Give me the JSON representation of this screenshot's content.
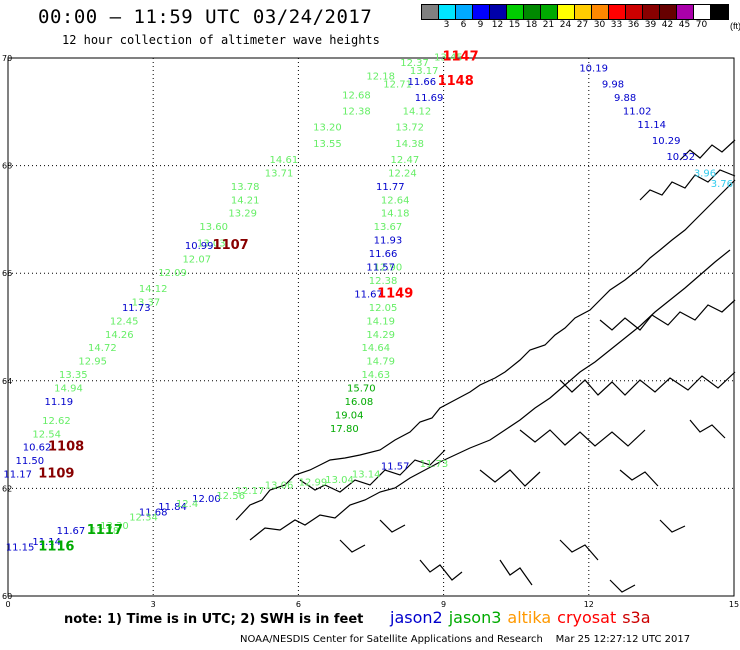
{
  "title": "00:00 – 11:59 UTC 03/24/2017",
  "subtitle": "12 hour collection of altimeter wave heights",
  "legend": {
    "colors": [
      "#808080",
      "#00e5ff",
      "#00aaff",
      "#0000ff",
      "#0000aa",
      "#00cc00",
      "#008800",
      "#00aa00",
      "#ffff00",
      "#ffcc00",
      "#ff8800",
      "#ff0000",
      "#cc0000",
      "#880000",
      "#660000",
      "#aa00aa",
      "#ffffff",
      "#000000"
    ],
    "labels": [
      "3",
      "6",
      "9",
      "12",
      "15",
      "18",
      "21",
      "24",
      "27",
      "30",
      "33",
      "36",
      "39",
      "42",
      "45",
      "70"
    ],
    "unit": "(ft)"
  },
  "axes": {
    "x_ticks": [
      "0",
      "3",
      "6",
      "9",
      "12",
      "15"
    ],
    "y_ticks": [
      "70",
      "68",
      "66",
      "64",
      "62",
      "60"
    ]
  },
  "colors": {
    "jason2": "#0000cc",
    "jason3": "#00aa00",
    "altika": "#ff9900",
    "cryosat": "#ff0000",
    "s3a": "#cc0000",
    "light_green": "#66ee66",
    "cyan": "#33ccee",
    "dark_red": "#880000"
  },
  "passes": [
    {
      "color": "light_green",
      "points": [
        [
          9.1,
          69.95,
          "13.45"
        ],
        [
          8.4,
          69.85,
          "12.37"
        ],
        [
          8.6,
          69.7,
          "13.17"
        ],
        [
          7.7,
          69.6,
          "12.18"
        ],
        [
          8.05,
          69.45,
          "12.71"
        ],
        [
          7.2,
          69.25,
          "12.68"
        ],
        [
          7.2,
          68.95,
          "12.38"
        ],
        [
          6.6,
          68.65,
          "13.20"
        ],
        [
          6.6,
          68.35,
          "13.55"
        ],
        [
          5.7,
          68.05,
          "14.61"
        ],
        [
          5.6,
          67.8,
          "13.71"
        ],
        [
          4.9,
          67.55,
          "13.78"
        ],
        [
          4.9,
          67.3,
          "14.21"
        ],
        [
          4.85,
          67.05,
          "13.29"
        ],
        [
          4.25,
          66.8,
          "13.60"
        ],
        [
          4.2,
          66.5,
          "13.03"
        ],
        [
          3.9,
          66.2,
          "12.07"
        ],
        [
          3.4,
          65.95,
          "12.09"
        ],
        [
          3.0,
          65.65,
          "14.12"
        ],
        [
          2.85,
          65.4,
          "13.37"
        ]
      ]
    },
    {
      "color": "jason2",
      "points": [
        [
          8.55,
          69.5,
          "11.66"
        ],
        [
          8.7,
          69.2,
          "11.69"
        ],
        [
          3.95,
          66.45,
          "10.99"
        ],
        [
          2.65,
          65.3,
          "11.73"
        ]
      ]
    },
    {
      "color": "light_green",
      "points": [
        [
          8.45,
          68.95,
          "14.12"
        ],
        [
          8.3,
          68.65,
          "13.72"
        ],
        [
          8.3,
          68.35,
          "14.38"
        ],
        [
          8.2,
          68.05,
          "12.47"
        ],
        [
          8.15,
          67.8,
          "12.24"
        ],
        [
          8.0,
          67.3,
          "12.64"
        ],
        [
          8.0,
          67.05,
          "14.18"
        ],
        [
          7.85,
          66.8,
          "13.67"
        ],
        [
          7.85,
          66.05,
          "12.90"
        ],
        [
          7.75,
          65.8,
          "12.38"
        ],
        [
          7.75,
          65.3,
          "12.05"
        ],
        [
          7.7,
          65.05,
          "14.19"
        ],
        [
          7.7,
          64.8,
          "14.29"
        ],
        [
          7.6,
          64.55,
          "14.64"
        ],
        [
          7.7,
          64.3,
          "14.79"
        ],
        [
          7.6,
          64.05,
          "14.63"
        ]
      ]
    },
    {
      "color": "jason2",
      "points": [
        [
          7.9,
          67.55,
          "11.77"
        ],
        [
          7.85,
          66.55,
          "11.93"
        ],
        [
          7.75,
          66.3,
          "11.66"
        ],
        [
          7.7,
          66.05,
          "11.57"
        ],
        [
          7.45,
          65.55,
          "11.67"
        ]
      ]
    },
    {
      "color": "jason3",
      "points": [
        [
          7.3,
          63.8,
          "15.70"
        ],
        [
          7.25,
          63.55,
          "16.08"
        ],
        [
          7.05,
          63.3,
          "19.04"
        ],
        [
          6.95,
          63.05,
          "17.80"
        ]
      ]
    },
    {
      "color": "light_green",
      "points": [
        [
          2.4,
          65.05,
          "12.45"
        ],
        [
          2.3,
          64.8,
          "14.26"
        ],
        [
          1.95,
          64.55,
          "14.72"
        ],
        [
          1.75,
          64.3,
          "12.95"
        ],
        [
          1.35,
          64.05,
          "13.35"
        ],
        [
          1.25,
          63.8,
          "14.94"
        ],
        [
          1.0,
          63.2,
          "12.62"
        ],
        [
          0.8,
          62.95,
          "12.54"
        ]
      ]
    },
    {
      "color": "jason2",
      "points": [
        [
          1.05,
          63.55,
          "11.19"
        ],
        [
          0.6,
          62.7,
          "10.62"
        ],
        [
          0.45,
          62.45,
          "11.50"
        ],
        [
          0.2,
          62.2,
          "11.17"
        ]
      ]
    },
    {
      "color": "jason2",
      "points": [
        [
          12.1,
          69.75,
          "10.19"
        ],
        [
          12.5,
          69.45,
          "9.98"
        ],
        [
          12.75,
          69.2,
          "9.88"
        ],
        [
          13.0,
          68.95,
          "11.02"
        ],
        [
          13.3,
          68.7,
          "11.14"
        ],
        [
          13.6,
          68.4,
          "10.29"
        ],
        [
          13.9,
          68.1,
          "10.52"
        ]
      ]
    },
    {
      "color": "cyan",
      "points": [
        [
          14.4,
          67.8,
          "3.96"
        ],
        [
          14.75,
          67.6,
          "3.76"
        ]
      ]
    },
    {
      "color": "jason2",
      "points": [
        [
          4.1,
          61.75,
          "12.00"
        ],
        [
          3.0,
          61.5,
          "11.68"
        ],
        [
          3.4,
          61.6,
          "11.84"
        ],
        [
          1.3,
          61.15,
          "11.67"
        ],
        [
          0.8,
          60.95,
          "11.14"
        ],
        [
          0.25,
          60.85,
          "11.15"
        ],
        [
          8.0,
          62.35,
          "11.57"
        ]
      ]
    },
    {
      "color": "light_green",
      "points": [
        [
          3.7,
          61.65,
          "12.4"
        ],
        [
          2.8,
          61.4,
          "12.34"
        ],
        [
          2.2,
          61.25,
          "13.30"
        ],
        [
          2.0,
          61.15,
          "12.78"
        ],
        [
          4.6,
          61.8,
          "12.56"
        ],
        [
          5.0,
          61.9,
          "12.17"
        ],
        [
          5.6,
          62.0,
          "13.06"
        ],
        [
          6.3,
          62.05,
          "12.99"
        ],
        [
          6.85,
          62.1,
          "13.04"
        ],
        [
          7.4,
          62.2,
          "13.14"
        ],
        [
          8.8,
          62.4,
          "11.73"
        ]
      ]
    }
  ],
  "cycles": [
    {
      "label": "1147",
      "x": 9.35,
      "y": 69.95,
      "color": "cryosat"
    },
    {
      "label": "1148",
      "x": 9.25,
      "y": 69.5,
      "color": "cryosat"
    },
    {
      "label": "1107",
      "x": 4.6,
      "y": 66.45,
      "color": "dark_red"
    },
    {
      "label": "1149",
      "x": 8.0,
      "y": 65.55,
      "color": "cryosat"
    },
    {
      "label": "1108",
      "x": 1.2,
      "y": 62.7,
      "color": "dark_red"
    },
    {
      "label": "1109",
      "x": 1.0,
      "y": 62.2,
      "color": "dark_red"
    },
    {
      "label": "1117",
      "x": 2.0,
      "y": 61.15,
      "color": "jason3"
    },
    {
      "label": "1116",
      "x": 1.0,
      "y": 60.85,
      "color": "jason3"
    }
  ],
  "note": "note: 1) Time is in UTC; 2) SWH is in feet",
  "sats": [
    {
      "label": "jason2",
      "color": "#0000cc"
    },
    {
      "label": "jason3",
      "color": "#00aa00"
    },
    {
      "label": "altika",
      "color": "#ff9900"
    },
    {
      "label": "cryosat",
      "color": "#ff0000"
    },
    {
      "label": "s3a",
      "color": "#cc0000"
    }
  ],
  "credit": "NOAA/NESDIS Center for Satellite Applications and Research    Mar 25 12:27:12 UTC 2017"
}
